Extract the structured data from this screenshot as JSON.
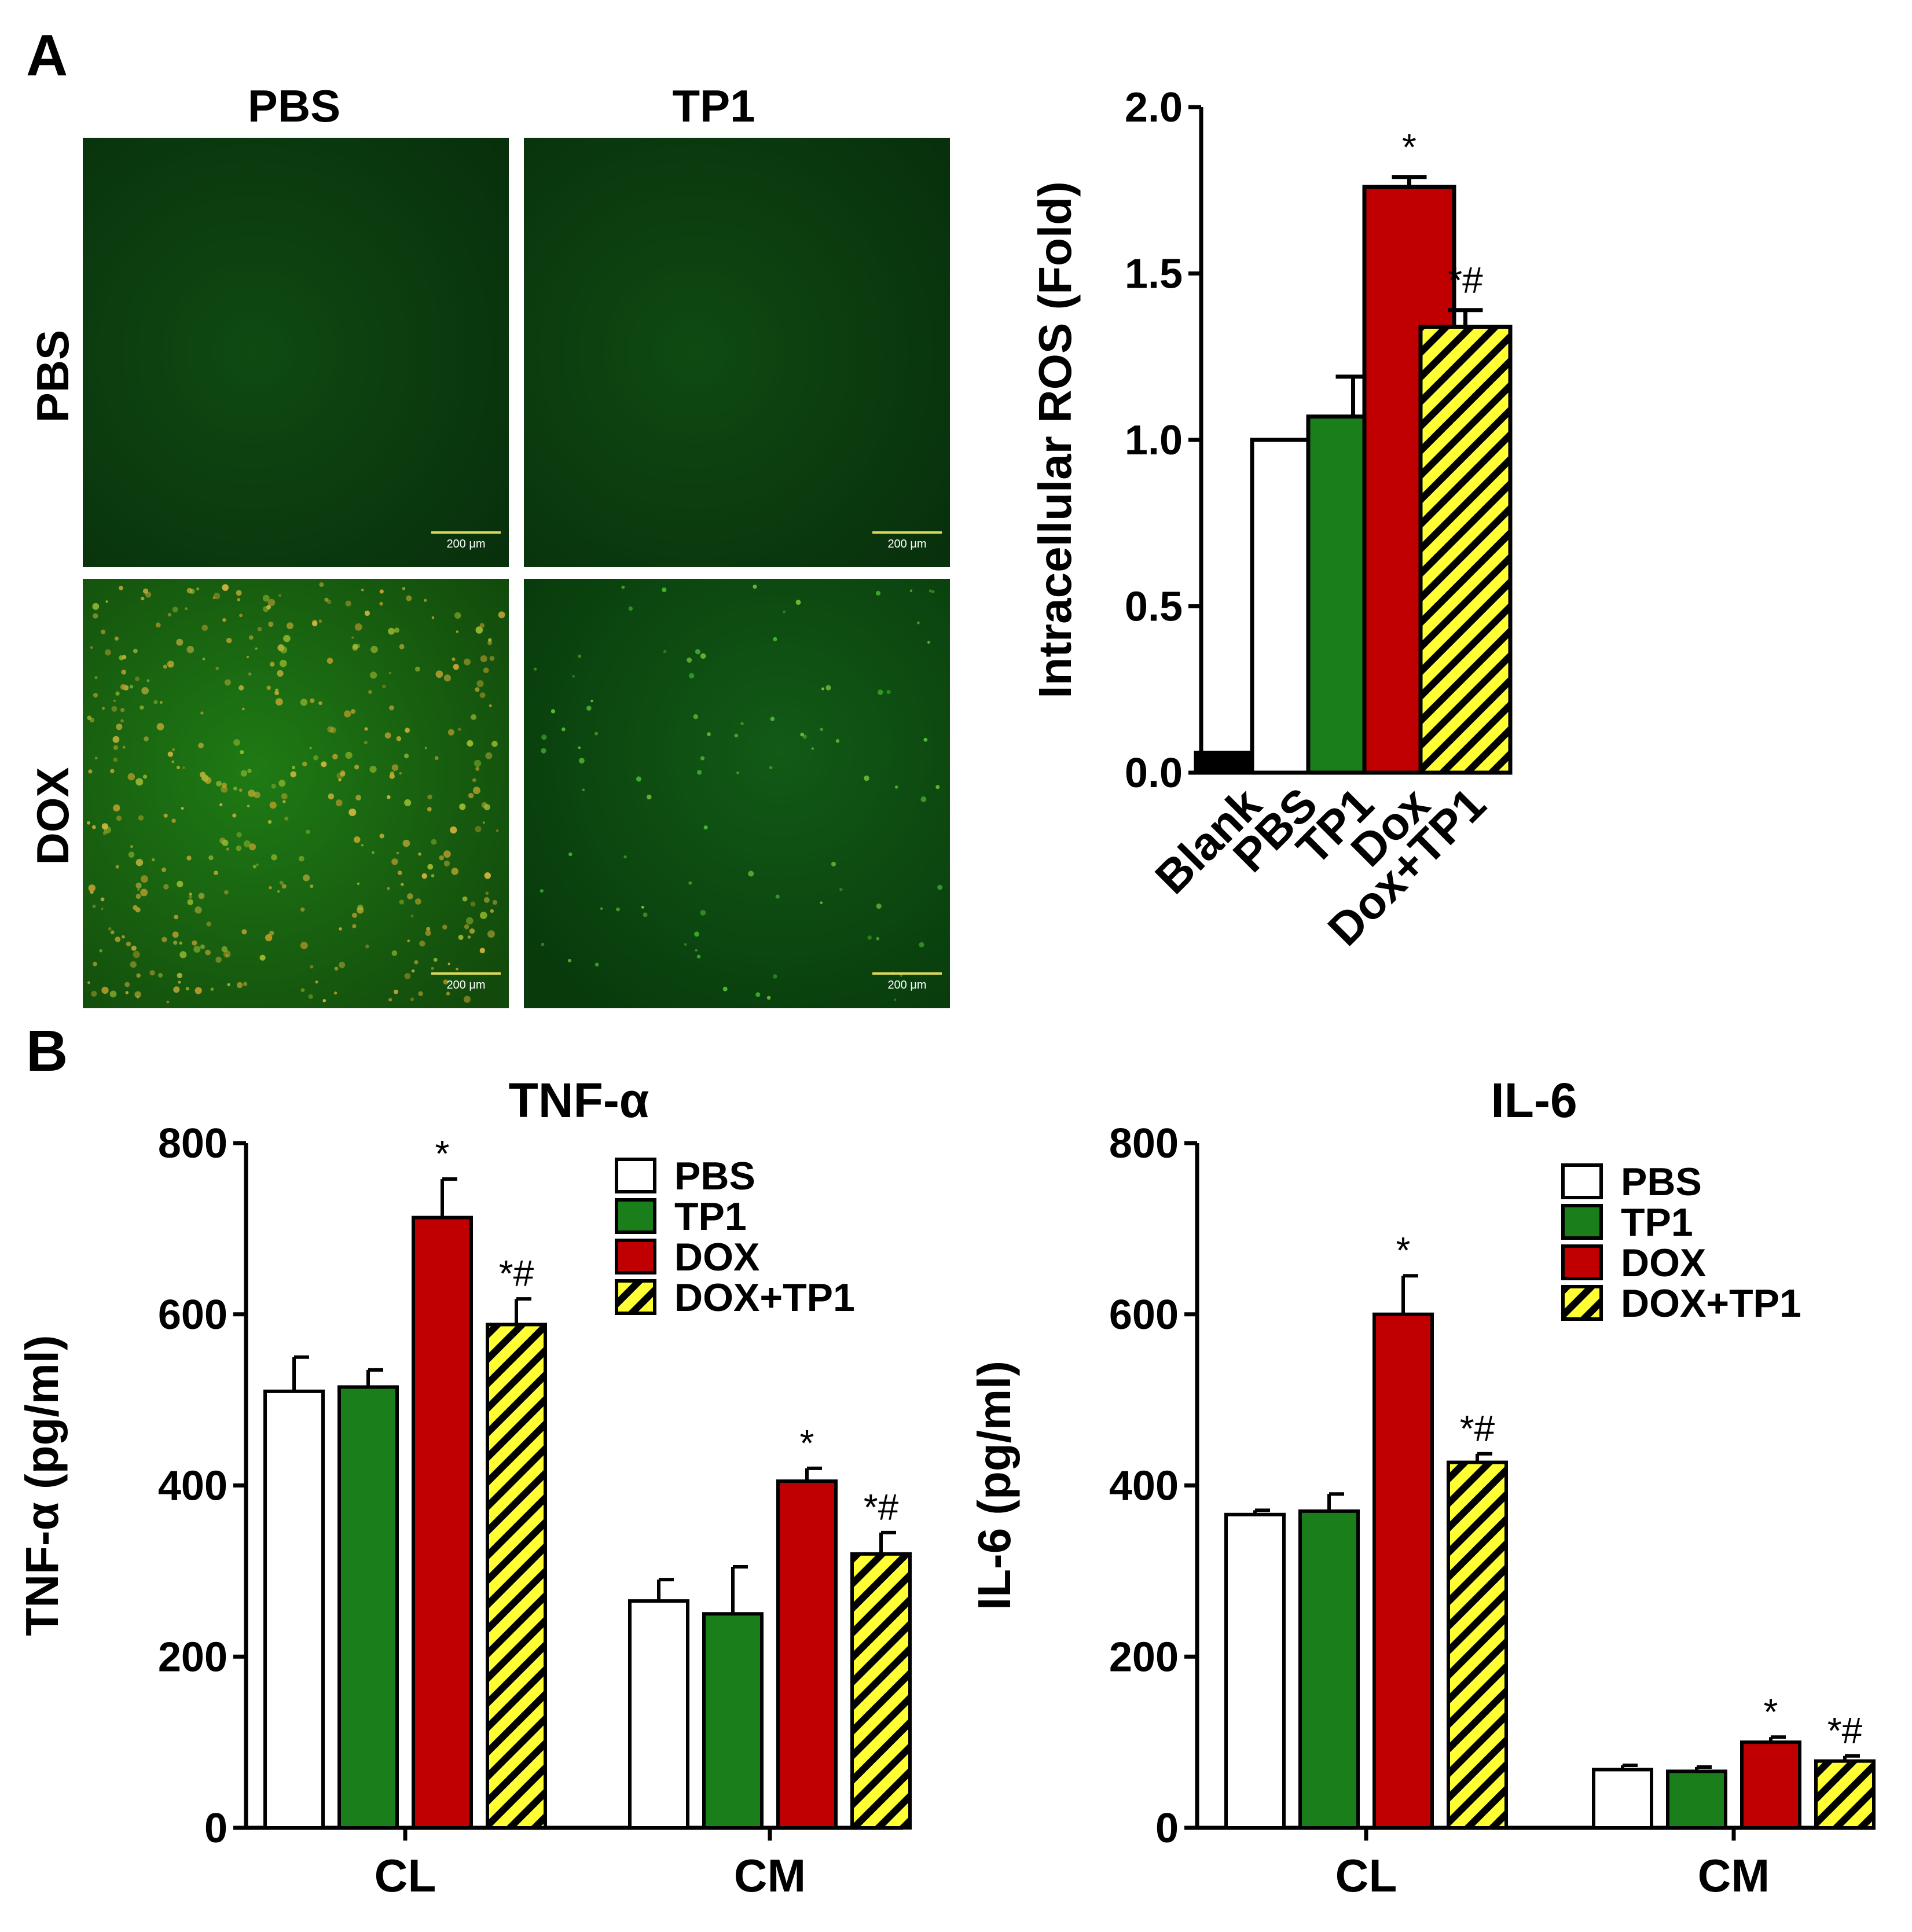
{
  "panel_a": {
    "letter": "A",
    "micrograph": {
      "col_headers": [
        "PBS",
        "TP1"
      ],
      "row_headers": [
        "PBS",
        "DOX"
      ],
      "scale_bar_label": "200 μm"
    }
  },
  "panel_b": {
    "letter": "B"
  },
  "colors": {
    "PBS": "#ffffff",
    "TP1": "#1a7f1a",
    "DOX": "#c00000",
    "DOX+TP1": "#ffff33",
    "Blank": "#000000",
    "hatch": "#000000"
  },
  "chart_data": [
    {
      "type": "bar",
      "title": "",
      "xlabel": "",
      "ylabel": "Intracellular ROS (Fold)",
      "ylim": [
        0,
        2.0
      ],
      "yticks": [
        "0.0",
        "0.5",
        "1.0",
        "1.5",
        "2.0"
      ],
      "categories": [
        "Blank",
        "PBS",
        "TP1",
        "Dox",
        "Dox+TP1"
      ],
      "values": [
        0.06,
        1.0,
        1.07,
        1.76,
        1.34
      ],
      "errors": [
        0.0,
        0.0,
        0.12,
        0.03,
        0.05
      ],
      "annotations": [
        "",
        "",
        "",
        "*",
        "*#"
      ],
      "grid": false,
      "legend": "none"
    },
    {
      "type": "bar",
      "title": "TNF-α",
      "xlabel": "",
      "ylabel": "TNF-α (pg/ml)",
      "ylim": [
        0,
        800
      ],
      "yticks": [
        "0",
        "200",
        "400",
        "600",
        "800"
      ],
      "categories": [
        "CL",
        "CM"
      ],
      "series": [
        {
          "name": "PBS",
          "values": [
            510,
            265
          ],
          "errors": [
            40,
            25
          ],
          "annotations": [
            "",
            ""
          ]
        },
        {
          "name": "TP1",
          "values": [
            515,
            250
          ],
          "errors": [
            20,
            55
          ],
          "annotations": [
            "",
            ""
          ]
        },
        {
          "name": "DOX",
          "values": [
            713,
            405
          ],
          "errors": [
            45,
            15
          ],
          "annotations": [
            "*",
            "*"
          ]
        },
        {
          "name": "DOX+TP1",
          "values": [
            588,
            320
          ],
          "errors": [
            30,
            25
          ],
          "annotations": [
            "*#",
            "*#"
          ]
        }
      ],
      "grid": false,
      "legend": "top-right"
    },
    {
      "type": "bar",
      "title": "IL-6",
      "xlabel": "",
      "ylabel": "IL-6 (pg/ml)",
      "ylim": [
        0,
        800
      ],
      "yticks": [
        "0",
        "200",
        "400",
        "600",
        "800"
      ],
      "categories": [
        "CL",
        "CM"
      ],
      "series": [
        {
          "name": "PBS",
          "values": [
            366,
            68
          ],
          "errors": [
            5,
            5
          ],
          "annotations": [
            "",
            ""
          ]
        },
        {
          "name": "TP1",
          "values": [
            370,
            66
          ],
          "errors": [
            20,
            5
          ],
          "annotations": [
            "",
            ""
          ]
        },
        {
          "name": "DOX",
          "values": [
            600,
            100
          ],
          "errors": [
            45,
            6
          ],
          "annotations": [
            "*",
            "*"
          ]
        },
        {
          "name": "DOX+TP1",
          "values": [
            427,
            78
          ],
          "errors": [
            10,
            6
          ],
          "annotations": [
            "*#",
            "*#"
          ]
        }
      ],
      "grid": false,
      "legend": "top-right"
    }
  ]
}
